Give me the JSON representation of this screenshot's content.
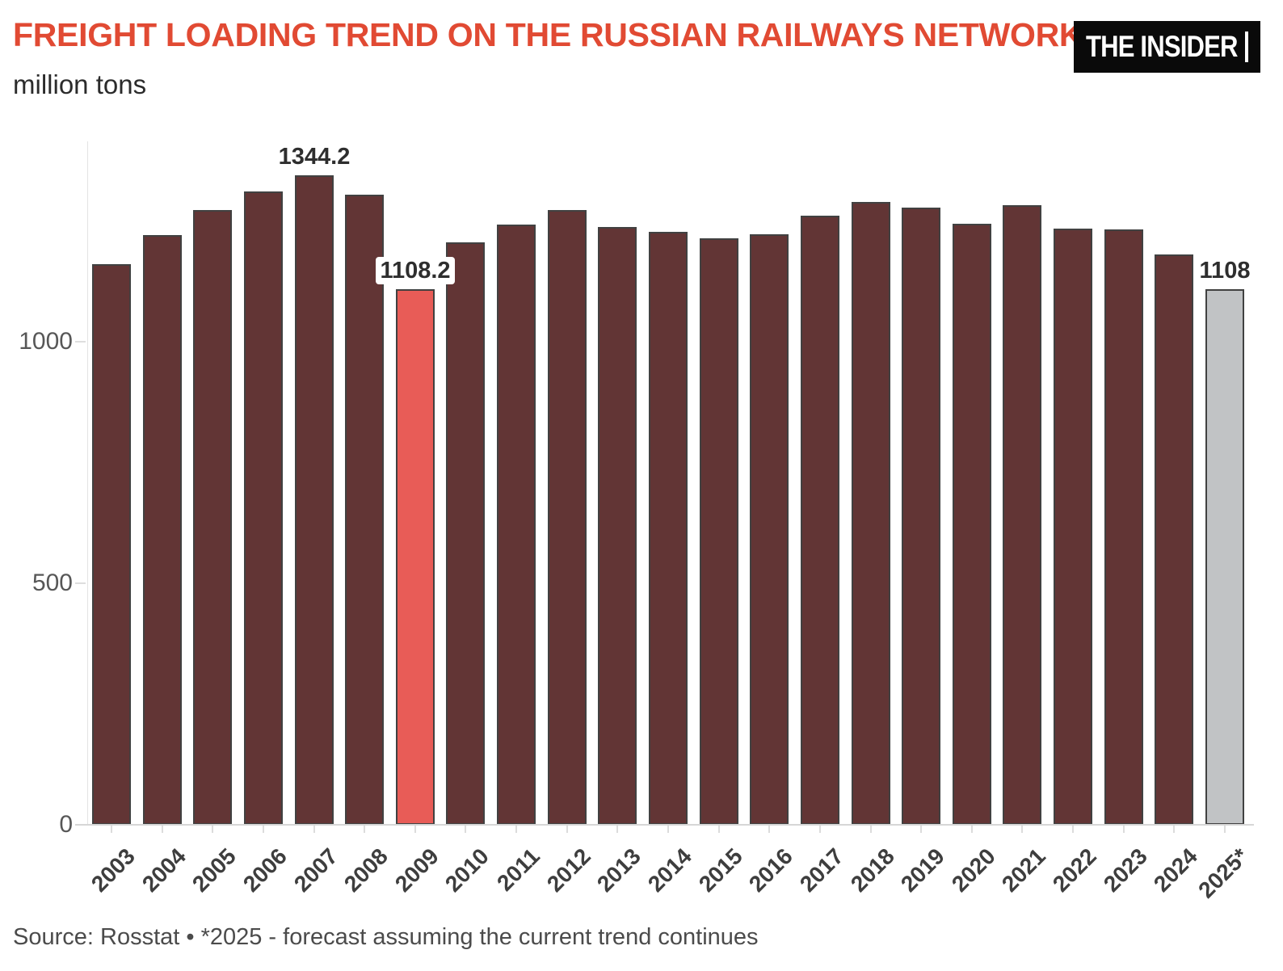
{
  "header": {
    "title": "FREIGHT LOADING TREND ON THE RUSSIAN RAILWAYS NETWORK",
    "subtitle": "million tons",
    "logo_text": "THE INSIDER"
  },
  "footer": {
    "source_note": "Source: Rosstat • *2025 - forecast assuming the current trend continues"
  },
  "colors": {
    "title_red": "#e14a33",
    "bar_default": "#623535",
    "bar_highlight": "#e85c57",
    "bar_forecast": "#c1c3c5",
    "bar_border": "#414141",
    "axis_text": "#575757",
    "x_label_text": "#3e3e3e",
    "value_label_text": "#2e2e2e",
    "logo_bg": "#0a0a0a",
    "logo_text_color": "#ffffff"
  },
  "chart_data": {
    "type": "bar",
    "title": "FREIGHT LOADING TREND ON THE RUSSIAN RAILWAYS NETWORK",
    "ylabel": "million tons",
    "xlabel": "",
    "ylim": [
      0,
      1415
    ],
    "yticks": [
      0,
      500,
      1000
    ],
    "grid": false,
    "legend": false,
    "categories": [
      "2003",
      "2004",
      "2005",
      "2006",
      "2007",
      "2008",
      "2009",
      "2010",
      "2011",
      "2012",
      "2013",
      "2014",
      "2015",
      "2016",
      "2017",
      "2018",
      "2019",
      "2020",
      "2021",
      "2022",
      "2023",
      "2024",
      "2025*"
    ],
    "values": [
      1161,
      1221,
      1273,
      1311,
      1344.2,
      1304,
      1108.2,
      1206,
      1242,
      1272,
      1237,
      1227,
      1214,
      1222,
      1261,
      1290,
      1278,
      1244,
      1283,
      1234,
      1232,
      1181,
      1108
    ],
    "highlight_category": "2009",
    "forecast_category": "2025*",
    "data_labels": [
      {
        "category": "2007",
        "text": "1344.2"
      },
      {
        "category": "2009",
        "text": "1108.2"
      },
      {
        "category": "2025*",
        "text": "1108"
      }
    ]
  }
}
